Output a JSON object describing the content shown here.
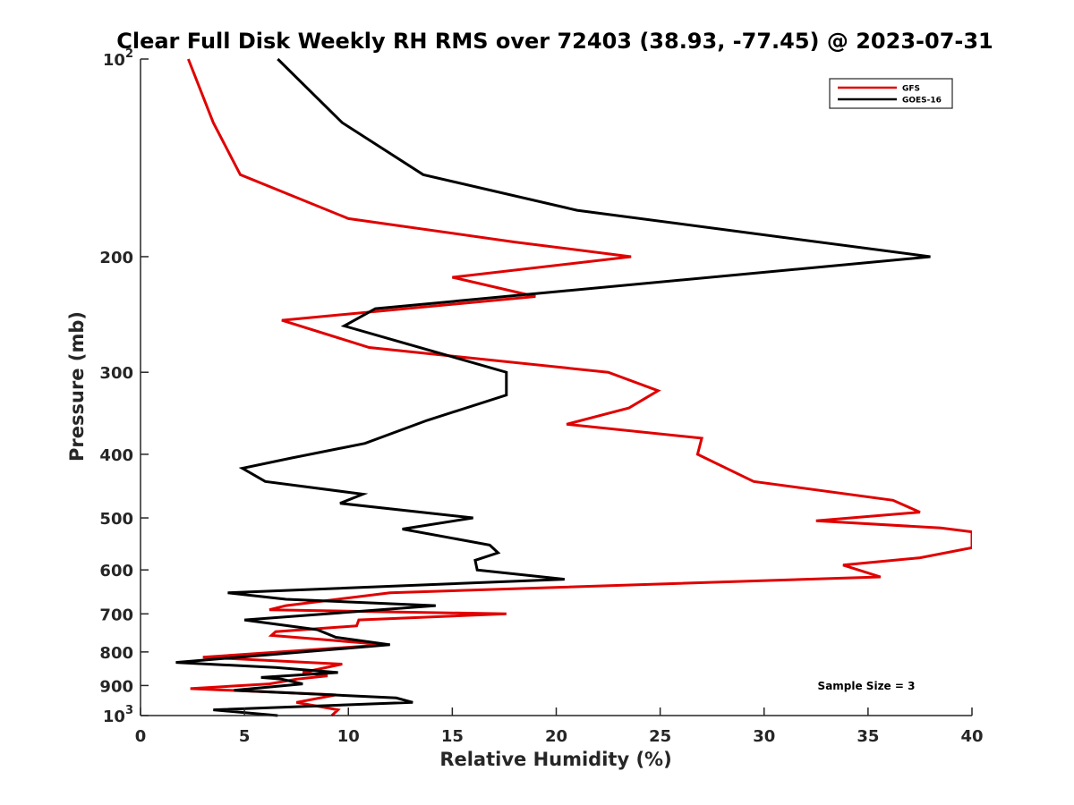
{
  "chart_data": {
    "type": "line",
    "title": "Clear Full Disk Weekly RH RMS over 72403 (38.93, -77.45) @ 2023-07-31",
    "xlabel": "Relative Humidity (%)",
    "ylabel": "Pressure (mb)",
    "xlim": [
      0,
      40
    ],
    "ylim": [
      100,
      1000
    ],
    "y_scale": "log",
    "y_reversed": true,
    "grid": false,
    "legend_position": "top-right",
    "annotation": "Sample Size = 3",
    "x_ticks": [
      0,
      5,
      10,
      15,
      20,
      25,
      30,
      35,
      40
    ],
    "y_ticks": [
      {
        "value": 100,
        "base": "10",
        "exp": "2"
      },
      {
        "value": 200,
        "text": "200"
      },
      {
        "value": 300,
        "text": "300"
      },
      {
        "value": 400,
        "text": "400"
      },
      {
        "value": 500,
        "text": "500"
      },
      {
        "value": 600,
        "text": "600"
      },
      {
        "value": 700,
        "text": "700"
      },
      {
        "value": 800,
        "text": "800"
      },
      {
        "value": 900,
        "text": "900"
      },
      {
        "value": 1000,
        "base": "10",
        "exp": "3"
      }
    ],
    "series": [
      {
        "name": "GFS",
        "color": "#e00000",
        "points": [
          [
            2.3,
            100
          ],
          [
            3.5,
            125
          ],
          [
            4.8,
            150
          ],
          [
            10.0,
            175
          ],
          [
            18.0,
            190
          ],
          [
            23.6,
            200
          ],
          [
            15.0,
            215
          ],
          [
            19.0,
            230
          ],
          [
            6.8,
            250
          ],
          [
            11.0,
            275
          ],
          [
            22.5,
            300
          ],
          [
            24.9,
            320
          ],
          [
            23.5,
            340
          ],
          [
            20.5,
            360
          ],
          [
            27.0,
            378
          ],
          [
            26.8,
            400
          ],
          [
            29.5,
            440
          ],
          [
            36.2,
            470
          ],
          [
            37.5,
            490
          ],
          [
            32.5,
            505
          ],
          [
            38.5,
            518
          ],
          [
            40.0,
            525
          ],
          [
            40.0,
            555
          ],
          [
            37.5,
            575
          ],
          [
            33.8,
            590
          ],
          [
            35.6,
            615
          ],
          [
            12.0,
            650
          ],
          [
            7.0,
            680
          ],
          [
            6.2,
            690
          ],
          [
            17.6,
            700
          ],
          [
            10.5,
            715
          ],
          [
            10.4,
            730
          ],
          [
            6.5,
            745
          ],
          [
            6.3,
            755
          ],
          [
            11.8,
            780
          ],
          [
            3.0,
            815
          ],
          [
            9.7,
            835
          ],
          [
            7.8,
            860
          ],
          [
            9.0,
            870
          ],
          [
            7.5,
            880
          ],
          [
            6.2,
            895
          ],
          [
            2.4,
            910
          ],
          [
            9.4,
            930
          ],
          [
            7.5,
            955
          ],
          [
            9.5,
            980
          ],
          [
            9.2,
            1000
          ]
        ]
      },
      {
        "name": "GOES-16",
        "color": "#000000",
        "points": [
          [
            6.6,
            100
          ],
          [
            9.7,
            125
          ],
          [
            13.6,
            150
          ],
          [
            21.0,
            170
          ],
          [
            38.0,
            200
          ],
          [
            11.3,
            240
          ],
          [
            9.8,
            255
          ],
          [
            17.6,
            300
          ],
          [
            17.6,
            325
          ],
          [
            13.8,
            355
          ],
          [
            10.8,
            385
          ],
          [
            7.3,
            405
          ],
          [
            4.9,
            420
          ],
          [
            6.0,
            440
          ],
          [
            10.7,
            460
          ],
          [
            9.6,
            475
          ],
          [
            16.0,
            500
          ],
          [
            12.6,
            520
          ],
          [
            16.8,
            550
          ],
          [
            17.2,
            565
          ],
          [
            16.1,
            580
          ],
          [
            16.2,
            600
          ],
          [
            20.4,
            620
          ],
          [
            4.2,
            650
          ],
          [
            7.0,
            665
          ],
          [
            14.2,
            680
          ],
          [
            5.0,
            715
          ],
          [
            8.5,
            740
          ],
          [
            9.4,
            760
          ],
          [
            12.0,
            780
          ],
          [
            1.7,
            830
          ],
          [
            6.5,
            845
          ],
          [
            9.5,
            860
          ],
          [
            5.8,
            875
          ],
          [
            6.8,
            880
          ],
          [
            7.8,
            895
          ],
          [
            4.5,
            915
          ],
          [
            12.3,
            940
          ],
          [
            13.1,
            955
          ],
          [
            3.5,
            980
          ],
          [
            6.6,
            1000
          ]
        ]
      }
    ]
  }
}
